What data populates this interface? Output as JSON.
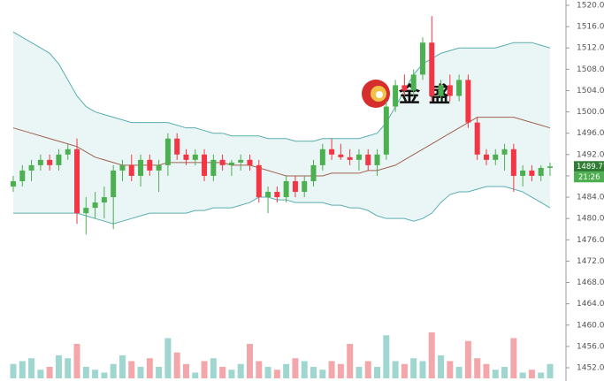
{
  "chart_data": {
    "type": "candlestick",
    "watermark": "金盛",
    "ylim": [
      1452,
      1520
    ],
    "yticks": [
      {
        "value": 1452,
        "label": "1452.00"
      },
      {
        "value": 1456,
        "label": "1456.00"
      },
      {
        "value": 1460,
        "label": "1460.00"
      },
      {
        "value": 1464,
        "label": "1464.00"
      },
      {
        "value": 1468,
        "label": "1468.00"
      },
      {
        "value": 1472,
        "label": "1472.00"
      },
      {
        "value": 1476,
        "label": "1476.00"
      },
      {
        "value": 1480,
        "label": "1480.00"
      },
      {
        "value": 1484,
        "label": "1484.00"
      },
      {
        "value": 1488,
        "label": "1488.00"
      },
      {
        "value": 1492,
        "label": "1492.00"
      },
      {
        "value": 1496,
        "label": "1496.00"
      },
      {
        "value": 1500,
        "label": "1500.00"
      },
      {
        "value": 1504,
        "label": "1504.00"
      },
      {
        "value": 1508,
        "label": "1508.00"
      },
      {
        "value": 1512,
        "label": "1512.00"
      },
      {
        "value": 1516,
        "label": "1516.00"
      },
      {
        "value": 1520,
        "label": "1520.00"
      }
    ],
    "last_price": {
      "value": 1489.77,
      "label": "1489.77"
    },
    "countdown": "21:26",
    "up_color": "#4caf50",
    "down_color": "#f23645",
    "open": [
      1486,
      1487,
      1489,
      1490,
      1491,
      1490,
      1492,
      1493,
      1481,
      1482,
      1483,
      1484,
      1489,
      1490,
      1488,
      1491,
      1489,
      1490,
      1495,
      1492,
      1491,
      1492,
      1488,
      1491,
      1490,
      1490.5,
      1491,
      1490,
      1484,
      1485,
      1484,
      1487,
      1485,
      1487,
      1490,
      1493,
      1492,
      1491.5,
      1491,
      1492,
      1490,
      1492,
      1501,
      1505,
      1504,
      1507,
      1513,
      1503,
      1505,
      1503,
      1506,
      1498,
      1492,
      1491,
      1492,
      1493,
      1488,
      1489,
      1488,
      1489.5
    ],
    "high": [
      1488,
      1490,
      1491,
      1492,
      1492,
      1493,
      1494,
      1495,
      1484,
      1485,
      1486,
      1490,
      1491,
      1492,
      1492,
      1492,
      1491,
      1496,
      1496,
      1493,
      1493,
      1493,
      1492,
      1492,
      1491,
      1492,
      1492,
      1491,
      1486,
      1486,
      1488,
      1488,
      1488,
      1491,
      1494,
      1495,
      1494,
      1493,
      1493,
      1493,
      1493,
      1502,
      1506,
      1507,
      1508,
      1514,
      1518,
      1506,
      1507,
      1507,
      1507,
      1499,
      1493,
      1493,
      1494,
      1494,
      1490,
      1490,
      1490,
      1490.5
    ],
    "low": [
      1485,
      1486,
      1487,
      1489,
      1489,
      1489,
      1491,
      1479,
      1477,
      1480,
      1480,
      1478,
      1487,
      1487,
      1486,
      1488,
      1485,
      1488,
      1491,
      1490,
      1490,
      1487,
      1487,
      1489,
      1488,
      1489,
      1489,
      1483,
      1481,
      1483,
      1483,
      1484,
      1484,
      1486,
      1489,
      1491,
      1491,
      1490,
      1489,
      1489,
      1488,
      1491,
      1500,
      1503,
      1503,
      1506,
      1502,
      1502,
      1502,
      1502,
      1497,
      1491,
      1490,
      1490,
      1489,
      1485,
      1486,
      1487,
      1487,
      1488
    ],
    "close": [
      1487,
      1489,
      1490,
      1491,
      1490,
      1492,
      1493,
      1481,
      1482,
      1483,
      1484,
      1489,
      1490,
      1488,
      1491,
      1489,
      1490,
      1495,
      1492,
      1491,
      1492,
      1488,
      1491,
      1490,
      1490.5,
      1491,
      1490,
      1484,
      1485,
      1484,
      1487,
      1485,
      1487,
      1490,
      1493,
      1492,
      1491.5,
      1491,
      1492,
      1490,
      1492,
      1501,
      1505,
      1504,
      1507,
      1513,
      1503,
      1505,
      1503,
      1506,
      1498,
      1492,
      1491,
      1492,
      1493,
      1488,
      1489,
      1488,
      1489.5,
      1489.77
    ],
    "volume": [
      25,
      30,
      35,
      15,
      20,
      40,
      35,
      60,
      20,
      15,
      10,
      25,
      40,
      30,
      20,
      35,
      20,
      70,
      45,
      25,
      10,
      30,
      35,
      20,
      15,
      25,
      60,
      30,
      20,
      15,
      25,
      35,
      30,
      20,
      15,
      30,
      25,
      60,
      20,
      30,
      20,
      75,
      30,
      25,
      35,
      30,
      80,
      40,
      30,
      20,
      65,
      35,
      25,
      15,
      20,
      70,
      10,
      15,
      10,
      25
    ],
    "vlim": [
      0,
      100
    ],
    "volume_up_color": "#9fd6d0",
    "volume_down_color": "#f4a7ab",
    "bands": [
      {
        "color": "#5aaeb0",
        "values": [
          1515,
          1514,
          1513,
          1512,
          1511,
          1509,
          1506,
          1503,
          1501,
          1500,
          1499.5,
          1499,
          1498.5,
          1498,
          1498,
          1498,
          1498,
          1498,
          1497.5,
          1497,
          1497,
          1496.5,
          1496,
          1496,
          1495.5,
          1495.5,
          1495.5,
          1495.5,
          1495,
          1495,
          1495,
          1494.5,
          1494.5,
          1494.5,
          1495,
          1495,
          1495,
          1495,
          1495,
          1495.5,
          1496,
          1498,
          1501,
          1504,
          1507,
          1509,
          1510,
          1511,
          1511.5,
          1512,
          1512,
          1512,
          1512,
          1512,
          1512.5,
          1513,
          1513,
          1513,
          1512.5,
          1512
        ]
      },
      {
        "color": "#a0614f",
        "values": [
          1497,
          1496.5,
          1496,
          1495.5,
          1495,
          1494.5,
          1494,
          1493.5,
          1492.5,
          1491.5,
          1491,
          1490.5,
          1490,
          1490,
          1490,
          1490,
          1490,
          1490.5,
          1490.5,
          1490.5,
          1490.5,
          1490.5,
          1490.5,
          1490.5,
          1490,
          1490,
          1490,
          1489.5,
          1489,
          1488.5,
          1488,
          1488,
          1488,
          1488,
          1488,
          1488.5,
          1488.5,
          1488.5,
          1488.5,
          1489,
          1489,
          1489.5,
          1490,
          1491,
          1492,
          1493,
          1494,
          1495,
          1496,
          1497,
          1498,
          1499,
          1499,
          1499,
          1499,
          1499,
          1498.5,
          1498,
          1497.5,
          1497
        ]
      },
      {
        "color": "#5aaeb0",
        "values": [
          1481,
          1481,
          1481,
          1481,
          1481,
          1481,
          1481,
          1481,
          1480.5,
          1480,
          1479.5,
          1479,
          1479.5,
          1480,
          1480.5,
          1481,
          1481,
          1481,
          1481,
          1481,
          1481.5,
          1481.5,
          1482,
          1482,
          1482,
          1482.5,
          1483,
          1484,
          1484,
          1483.5,
          1483.5,
          1483,
          1483,
          1483,
          1483,
          1482.5,
          1482.5,
          1482,
          1482,
          1481.5,
          1480.5,
          1480,
          1480,
          1480,
          1479.5,
          1480,
          1481,
          1483,
          1484.5,
          1485,
          1485,
          1485.5,
          1486,
          1486,
          1486,
          1485.5,
          1485,
          1484,
          1483,
          1482
        ]
      }
    ],
    "band_fill": "#eaf6f6"
  }
}
